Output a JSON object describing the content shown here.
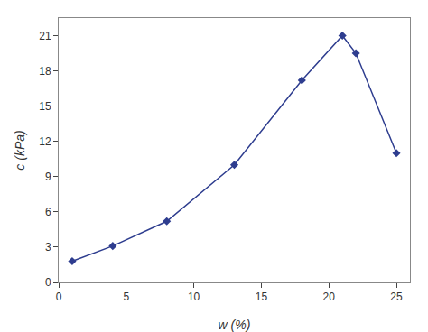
{
  "chart_data": {
    "type": "line",
    "x": [
      1,
      4,
      8,
      13,
      18,
      21,
      22,
      25
    ],
    "values": [
      1.8,
      3.1,
      5.2,
      10.0,
      17.2,
      21.0,
      19.5,
      11.0
    ],
    "xlabel": "w (%)",
    "ylabel": "c (kPa)",
    "xlim": [
      0,
      26
    ],
    "ylim": [
      0,
      22.5
    ],
    "xticks": [
      0,
      5,
      10,
      15,
      20,
      25
    ],
    "yticks": [
      0,
      3,
      6,
      9,
      12,
      15,
      18,
      21
    ],
    "color": "#2e3d8f",
    "marker": "diamond",
    "grid": false
  }
}
